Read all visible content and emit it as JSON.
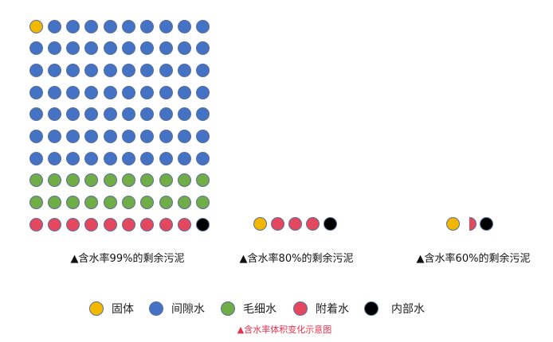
{
  "colors": {
    "solid": "#f2b800",
    "gap_water": "#4472c4",
    "capillary_water": "#70ad47",
    "adhered_water": "#e3485f",
    "internal_water": "#000000"
  },
  "groups": [
    {
      "label": "▲含水率99%的剩余污泥",
      "rows": [
        [
          "solid",
          "gap_water",
          "gap_water",
          "gap_water",
          "gap_water",
          "gap_water",
          "gap_water",
          "gap_water",
          "gap_water",
          "gap_water"
        ],
        [
          "gap_water",
          "gap_water",
          "gap_water",
          "gap_water",
          "gap_water",
          "gap_water",
          "gap_water",
          "gap_water",
          "gap_water",
          "gap_water"
        ],
        [
          "gap_water",
          "gap_water",
          "gap_water",
          "gap_water",
          "gap_water",
          "gap_water",
          "gap_water",
          "gap_water",
          "gap_water",
          "gap_water"
        ],
        [
          "gap_water",
          "gap_water",
          "gap_water",
          "gap_water",
          "gap_water",
          "gap_water",
          "gap_water",
          "gap_water",
          "gap_water",
          "gap_water"
        ],
        [
          "gap_water",
          "gap_water",
          "gap_water",
          "gap_water",
          "gap_water",
          "gap_water",
          "gap_water",
          "gap_water",
          "gap_water",
          "gap_water"
        ],
        [
          "gap_water",
          "gap_water",
          "gap_water",
          "gap_water",
          "gap_water",
          "gap_water",
          "gap_water",
          "gap_water",
          "gap_water",
          "gap_water"
        ],
        [
          "gap_water",
          "gap_water",
          "gap_water",
          "gap_water",
          "gap_water",
          "gap_water",
          "gap_water",
          "gap_water",
          "gap_water",
          "gap_water"
        ],
        [
          "capillary_water",
          "capillary_water",
          "capillary_water",
          "capillary_water",
          "capillary_water",
          "capillary_water",
          "capillary_water",
          "capillary_water",
          "capillary_water",
          "capillary_water"
        ],
        [
          "capillary_water",
          "capillary_water",
          "capillary_water",
          "capillary_water",
          "capillary_water",
          "capillary_water",
          "capillary_water",
          "capillary_water",
          "capillary_water",
          "capillary_water"
        ],
        [
          "adhered_water",
          "adhered_water",
          "adhered_water",
          "adhered_water",
          "adhered_water",
          "adhered_water",
          "adhered_water",
          "adhered_water",
          "adhered_water",
          "internal_water"
        ]
      ]
    },
    {
      "label": "▲含水率80%的剩余污泥",
      "rows": [
        [
          "solid",
          "adhered_water",
          "adhered_water",
          "adhered_water",
          "internal_water"
        ]
      ]
    },
    {
      "label": "▲含水率60%的剩余污泥",
      "rows": [
        [
          "solid",
          "adhered_water_half",
          "internal_water"
        ]
      ]
    }
  ],
  "legend": [
    {
      "key": "solid",
      "label": "固体"
    },
    {
      "key": "gap_water",
      "label": "间隙水"
    },
    {
      "key": "capillary_water",
      "label": "毛细水"
    },
    {
      "key": "adhered_water",
      "label": "附着水"
    },
    {
      "key": "internal_water",
      "label": "内部水"
    }
  ],
  "caption": "▲含水率体积变化示意图"
}
